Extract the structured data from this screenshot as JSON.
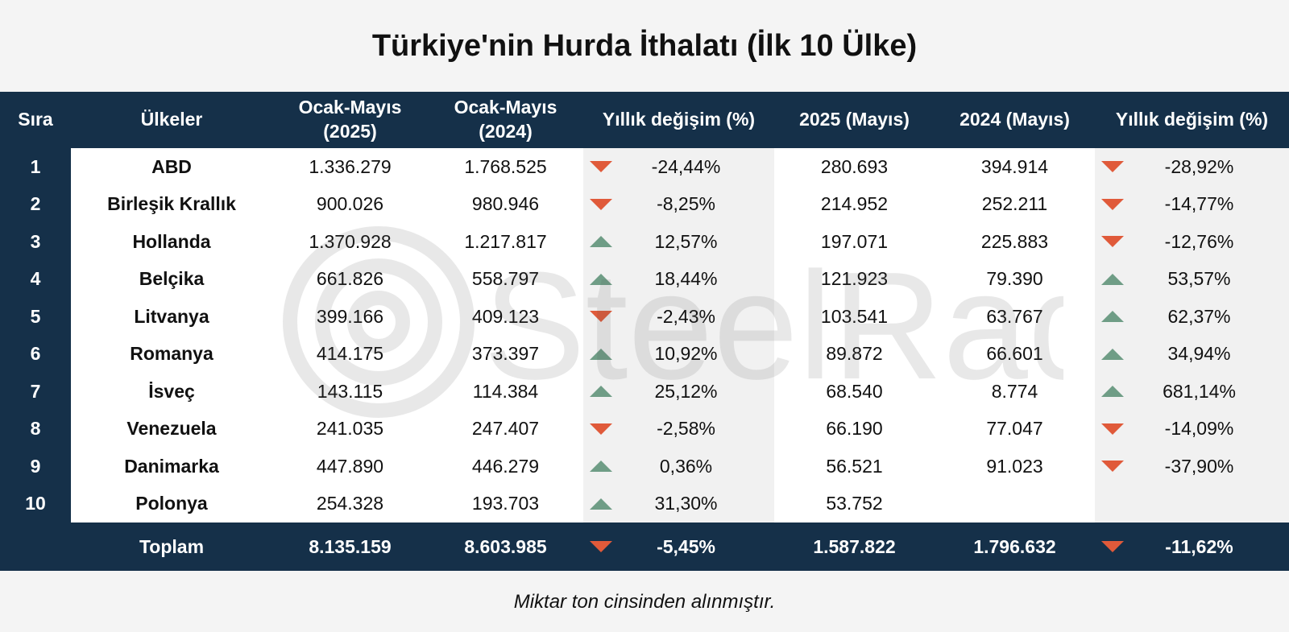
{
  "title": "Türkiye'nin Hurda İthalatı (İlk 10 Ülke)",
  "watermark": "SteelRadar",
  "headers": [
    "Sıra",
    "Ülkeler",
    "Ocak-Mayıs (2025)",
    "Ocak-Mayıs (2024)",
    "Yıllık değişim (%)",
    "2025 (Mayıs)",
    "2024 (Mayıs)",
    "Yıllık değişim (%)"
  ],
  "rows": [
    {
      "rank": "1",
      "country": "ABD",
      "ytd2025": "1.336.279",
      "ytd2024": "1.768.525",
      "ytd_dir": "down",
      "ytd_chg": "-24,44%",
      "m2025": "280.693",
      "m2024": "394.914",
      "m_dir": "down",
      "m_chg": "-28,92%"
    },
    {
      "rank": "2",
      "country": "Birleşik Krallık",
      "ytd2025": "900.026",
      "ytd2024": "980.946",
      "ytd_dir": "down",
      "ytd_chg": "-8,25%",
      "m2025": "214.952",
      "m2024": "252.211",
      "m_dir": "down",
      "m_chg": "-14,77%"
    },
    {
      "rank": "3",
      "country": "Hollanda",
      "ytd2025": "1.370.928",
      "ytd2024": "1.217.817",
      "ytd_dir": "up",
      "ytd_chg": "12,57%",
      "m2025": "197.071",
      "m2024": "225.883",
      "m_dir": "down",
      "m_chg": "-12,76%"
    },
    {
      "rank": "4",
      "country": "Belçika",
      "ytd2025": "661.826",
      "ytd2024": "558.797",
      "ytd_dir": "up",
      "ytd_chg": "18,44%",
      "m2025": "121.923",
      "m2024": "79.390",
      "m_dir": "up",
      "m_chg": "53,57%"
    },
    {
      "rank": "5",
      "country": "Litvanya",
      "ytd2025": "399.166",
      "ytd2024": "409.123",
      "ytd_dir": "down",
      "ytd_chg": "-2,43%",
      "m2025": "103.541",
      "m2024": "63.767",
      "m_dir": "up",
      "m_chg": "62,37%"
    },
    {
      "rank": "6",
      "country": "Romanya",
      "ytd2025": "414.175",
      "ytd2024": "373.397",
      "ytd_dir": "up",
      "ytd_chg": "10,92%",
      "m2025": "89.872",
      "m2024": "66.601",
      "m_dir": "up",
      "m_chg": "34,94%"
    },
    {
      "rank": "7",
      "country": "İsveç",
      "ytd2025": "143.115",
      "ytd2024": "114.384",
      "ytd_dir": "up",
      "ytd_chg": "25,12%",
      "m2025": "68.540",
      "m2024": "8.774",
      "m_dir": "up",
      "m_chg": "681,14%"
    },
    {
      "rank": "8",
      "country": "Venezuela",
      "ytd2025": "241.035",
      "ytd2024": "247.407",
      "ytd_dir": "down",
      "ytd_chg": "-2,58%",
      "m2025": "66.190",
      "m2024": "77.047",
      "m_dir": "down",
      "m_chg": "-14,09%"
    },
    {
      "rank": "9",
      "country": "Danimarka",
      "ytd2025": "447.890",
      "ytd2024": "446.279",
      "ytd_dir": "up",
      "ytd_chg": "0,36%",
      "m2025": "56.521",
      "m2024": "91.023",
      "m_dir": "down",
      "m_chg": "-37,90%"
    },
    {
      "rank": "10",
      "country": "Polonya",
      "ytd2025": "254.328",
      "ytd2024": "193.703",
      "ytd_dir": "up",
      "ytd_chg": "31,30%",
      "m2025": "53.752",
      "m2024": "",
      "m_dir": "",
      "m_chg": ""
    }
  ],
  "total": {
    "label": "Toplam",
    "ytd2025": "8.135.159",
    "ytd2024": "8.603.985",
    "ytd_dir": "down",
    "ytd_chg": "-5,45%",
    "m2025": "1.587.822",
    "m2024": "1.796.632",
    "m_dir": "down",
    "m_chg": "-11,62%"
  },
  "footer": "Miktar ton cinsinden alınmıştır.",
  "colors": {
    "header_bg": "#153049",
    "down": "#e05a3a",
    "up": "#6f9d86"
  }
}
